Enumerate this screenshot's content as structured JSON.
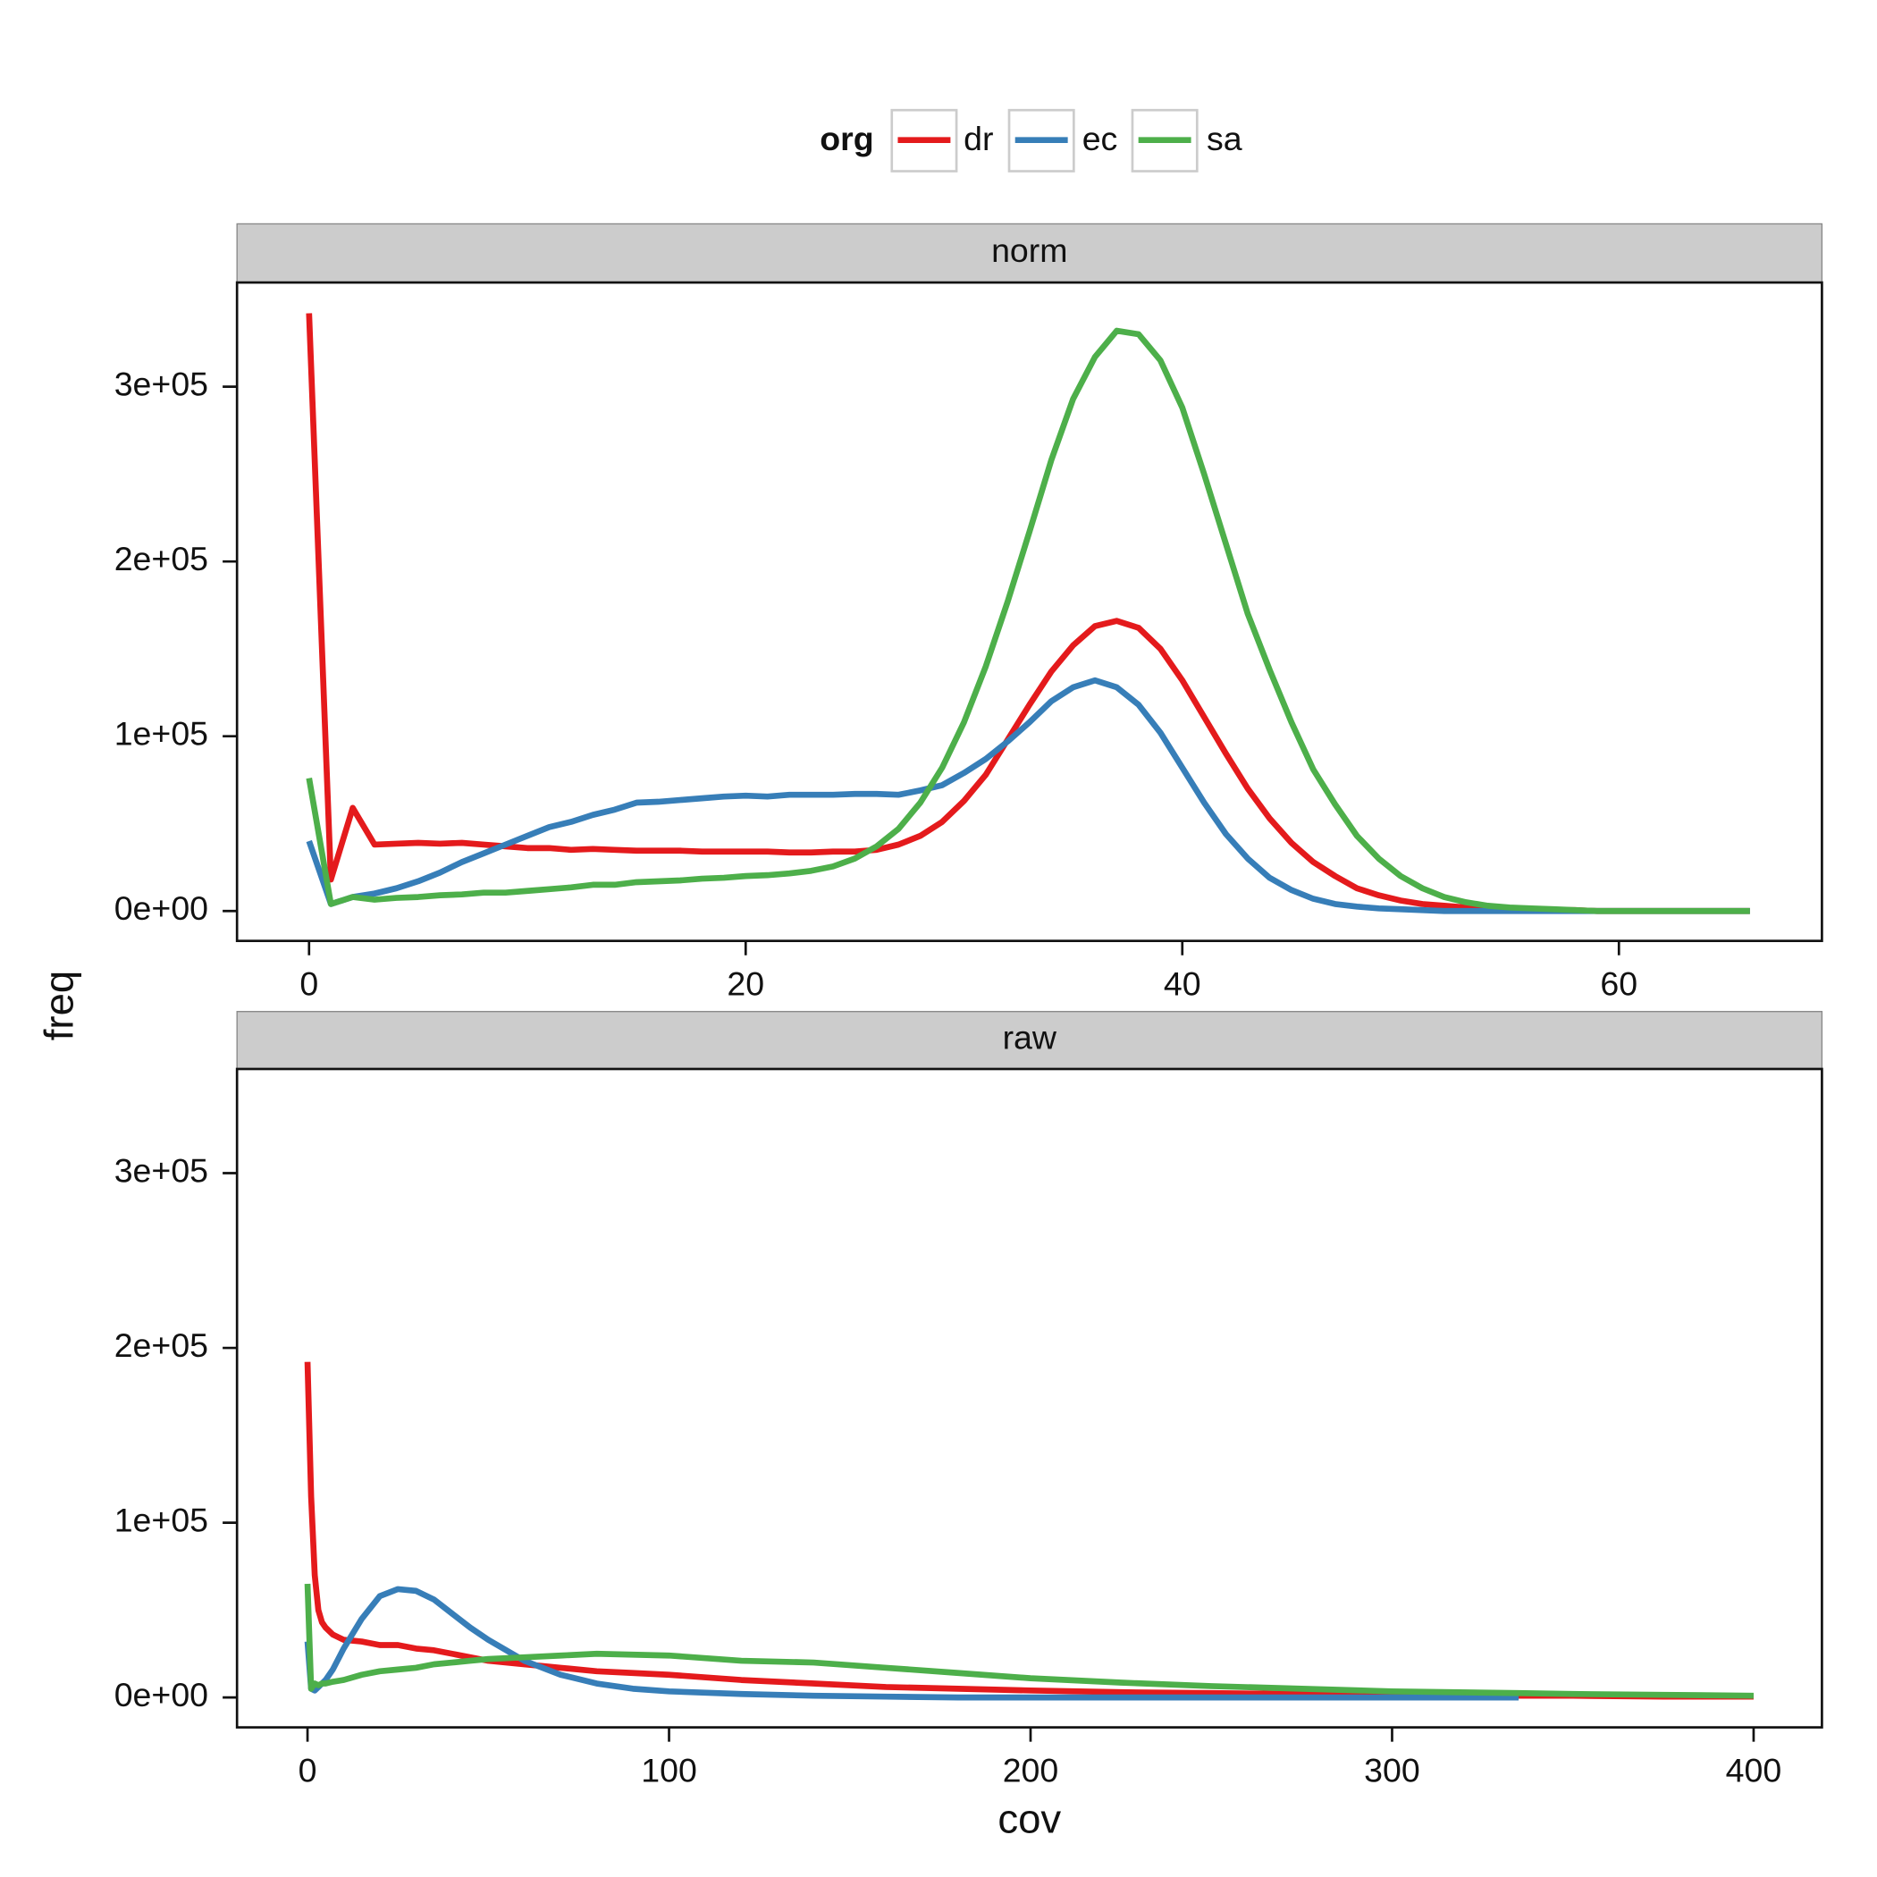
{
  "chart_data": {
    "type": "line",
    "xlabel": "cov",
    "ylabel": "freq",
    "legend": {
      "title": "org",
      "position": "top"
    },
    "series": [
      {
        "name": "dr",
        "color": "#e41a1c"
      },
      {
        "name": "ec",
        "color": "#377eb8"
      },
      {
        "name": "sa",
        "color": "#4daf4a"
      }
    ],
    "ylim": [
      -17100,
      359600
    ],
    "yticks": [
      {
        "value": 0,
        "label": "0e+00"
      },
      {
        "value": 100000,
        "label": "1e+05"
      },
      {
        "value": 200000,
        "label": "2e+05"
      },
      {
        "value": 300000,
        "label": "3e+05"
      }
    ],
    "panels": [
      {
        "title": "norm",
        "xlim": [
          -3.3,
          69.3
        ],
        "xticks": [
          0,
          20,
          40,
          60
        ],
        "x": [
          0,
          1,
          2,
          3,
          4,
          5,
          6,
          7,
          8,
          9,
          10,
          11,
          12,
          13,
          14,
          15,
          16,
          17,
          18,
          19,
          20,
          21,
          22,
          23,
          24,
          25,
          26,
          27,
          28,
          29,
          30,
          31,
          32,
          33,
          34,
          35,
          36,
          37,
          38,
          39,
          40,
          41,
          42,
          43,
          44,
          45,
          46,
          47,
          48,
          49,
          50,
          51,
          52,
          53,
          54,
          55,
          56,
          57,
          58,
          59,
          60,
          61,
          62,
          63,
          64,
          65,
          66
        ],
        "series": [
          {
            "values": [
              342000,
              18000,
              59000,
              38000,
              38500,
              39000,
              38500,
              39000,
              38000,
              37000,
              36000,
              36000,
              35000,
              35500,
              35000,
              34500,
              34500,
              34500,
              34000,
              34000,
              34000,
              34000,
              33500,
              33500,
              34000,
              34000,
              35000,
              38000,
              43000,
              51000,
              63000,
              78000,
              98000,
              118000,
              137000,
              152000,
              163000,
              166000,
              162000,
              150000,
              132000,
              111000,
              90000,
              70000,
              53000,
              39000,
              28000,
              20000,
              13000,
              9000,
              6000,
              4000,
              3000,
              2000,
              1500,
              1000,
              500,
              500,
              500,
              0,
              0,
              0,
              0,
              0,
              0,
              0,
              0
            ]
          },
          {
            "values": [
              40000,
              4000,
              8000,
              10000,
              13000,
              17000,
              22000,
              28000,
              33000,
              38000,
              43000,
              48000,
              51000,
              55000,
              58000,
              62000,
              62500,
              63500,
              64500,
              65500,
              66000,
              65500,
              66500,
              66500,
              66500,
              67000,
              67000,
              66500,
              69000,
              72000,
              79000,
              87000,
              97000,
              108000,
              120000,
              128000,
              132000,
              128000,
              118000,
              102000,
              82000,
              62000,
              44000,
              30000,
              19000,
              12000,
              7000,
              4000,
              2500,
              1500,
              1000,
              500,
              0,
              0,
              0,
              0,
              0,
              0,
              0,
              0,
              0,
              0,
              0,
              0,
              0,
              0,
              0
            ]
          },
          {
            "values": [
              76000,
              4000,
              8000,
              6500,
              7500,
              8000,
              9000,
              9500,
              10500,
              10500,
              11500,
              12500,
              13500,
              15000,
              15000,
              16500,
              17000,
              17500,
              18500,
              19000,
              20000,
              20500,
              21500,
              23000,
              25500,
              30000,
              37000,
              47000,
              62000,
              82000,
              108000,
              140000,
              177000,
              217000,
              258000,
              293000,
              317000,
              332000,
              330000,
              315000,
              288000,
              250000,
              210000,
              170000,
              138000,
              108000,
              81000,
              61000,
              43000,
              30000,
              20000,
              13000,
              8000,
              5000,
              3000,
              2000,
              1500,
              1000,
              500,
              0,
              0,
              0,
              0,
              0,
              0,
              0,
              0
            ]
          }
        ]
      },
      {
        "title": "raw",
        "xlim": [
          -19.5,
          418.9
        ],
        "xticks": [
          0,
          100,
          200,
          300,
          400
        ],
        "x": [
          0,
          1,
          2,
          3,
          4,
          5,
          7,
          10,
          15,
          20,
          25,
          30,
          35,
          40,
          45,
          50,
          60,
          70,
          80,
          90,
          100,
          120,
          140,
          160,
          180,
          200,
          225,
          250,
          275,
          300,
          335,
          350,
          375,
          400
        ],
        "series": [
          {
            "values": [
              192000,
              115000,
              70000,
              50000,
              43000,
              40000,
              36000,
              33000,
              32000,
              30000,
              30000,
              28000,
              27000,
              25000,
              23000,
              21000,
              19000,
              17000,
              15000,
              14000,
              13000,
              10000,
              8000,
              6000,
              5000,
              4000,
              3000,
              2500,
              2000,
              1500,
              1000,
              1000,
              500,
              500
            ]
          },
          {
            "values": [
              32000,
              5000,
              4000,
              6000,
              8000,
              10000,
              16000,
              28000,
              45000,
              58000,
              62000,
              61000,
              56000,
              48000,
              40000,
              33000,
              21000,
              13000,
              8000,
              5000,
              3500,
              2000,
              1000,
              500,
              0,
              0,
              0,
              0,
              0,
              0,
              0,
              null,
              null,
              null
            ]
          },
          {
            "values": [
              65000,
              5000,
              8000,
              7000,
              8000,
              8000,
              9000,
              10000,
              13000,
              15000,
              16000,
              17000,
              19000,
              20000,
              21000,
              22000,
              23000,
              24000,
              25000,
              24500,
              24000,
              21000,
              20000,
              17000,
              14000,
              11000,
              8500,
              6500,
              5000,
              3500,
              2500,
              2000,
              1500,
              1000
            ]
          }
        ]
      }
    ]
  }
}
